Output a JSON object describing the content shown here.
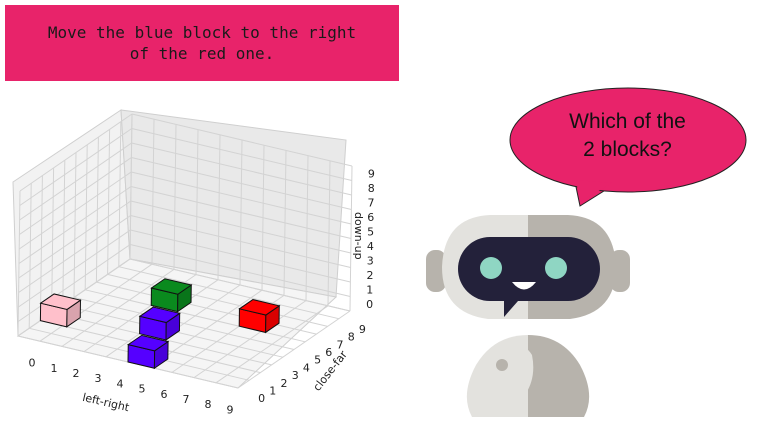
{
  "instruction": {
    "line1": "Move the blue block to the right",
    "line2": "of the red one."
  },
  "speech": {
    "line1": "Which of the",
    "line2": "2 blocks?"
  },
  "plot": {
    "x_axis_label": "left-right",
    "y_axis_label": "close-far",
    "z_axis_label": "down-up",
    "x_ticks": [
      "0",
      "1",
      "2",
      "3",
      "4",
      "5",
      "6",
      "7",
      "8",
      "9"
    ],
    "y_ticks": [
      "0",
      "1",
      "2",
      "3",
      "4",
      "5",
      "6",
      "7",
      "8",
      "9"
    ],
    "z_ticks": [
      "0",
      "1",
      "2",
      "3",
      "4",
      "5",
      "6",
      "7",
      "8",
      "9"
    ],
    "blocks": [
      {
        "name": "green-block",
        "color": "#0a8a1e",
        "x": 3,
        "y": 6,
        "z": 0
      },
      {
        "name": "pink-block",
        "color": "#ffc0cb",
        "x": 0,
        "y": 2,
        "z": 0
      },
      {
        "name": "blue-block-upper",
        "color": "#5500ff",
        "x": 4,
        "y": 3,
        "z": 0
      },
      {
        "name": "red-block",
        "color": "#ff0000",
        "x": 7,
        "y": 6,
        "z": 0
      },
      {
        "name": "blue-block-lower",
        "color": "#5500ff",
        "x": 5,
        "y": 0,
        "z": 0
      }
    ]
  },
  "colors": {
    "banner": "#e8236a",
    "bubble": "#e8236a",
    "robot_light": "#e3e2de",
    "robot_dark": "#b7b3ac",
    "robot_visor": "#23213a",
    "robot_eye": "#8fd6c3"
  }
}
